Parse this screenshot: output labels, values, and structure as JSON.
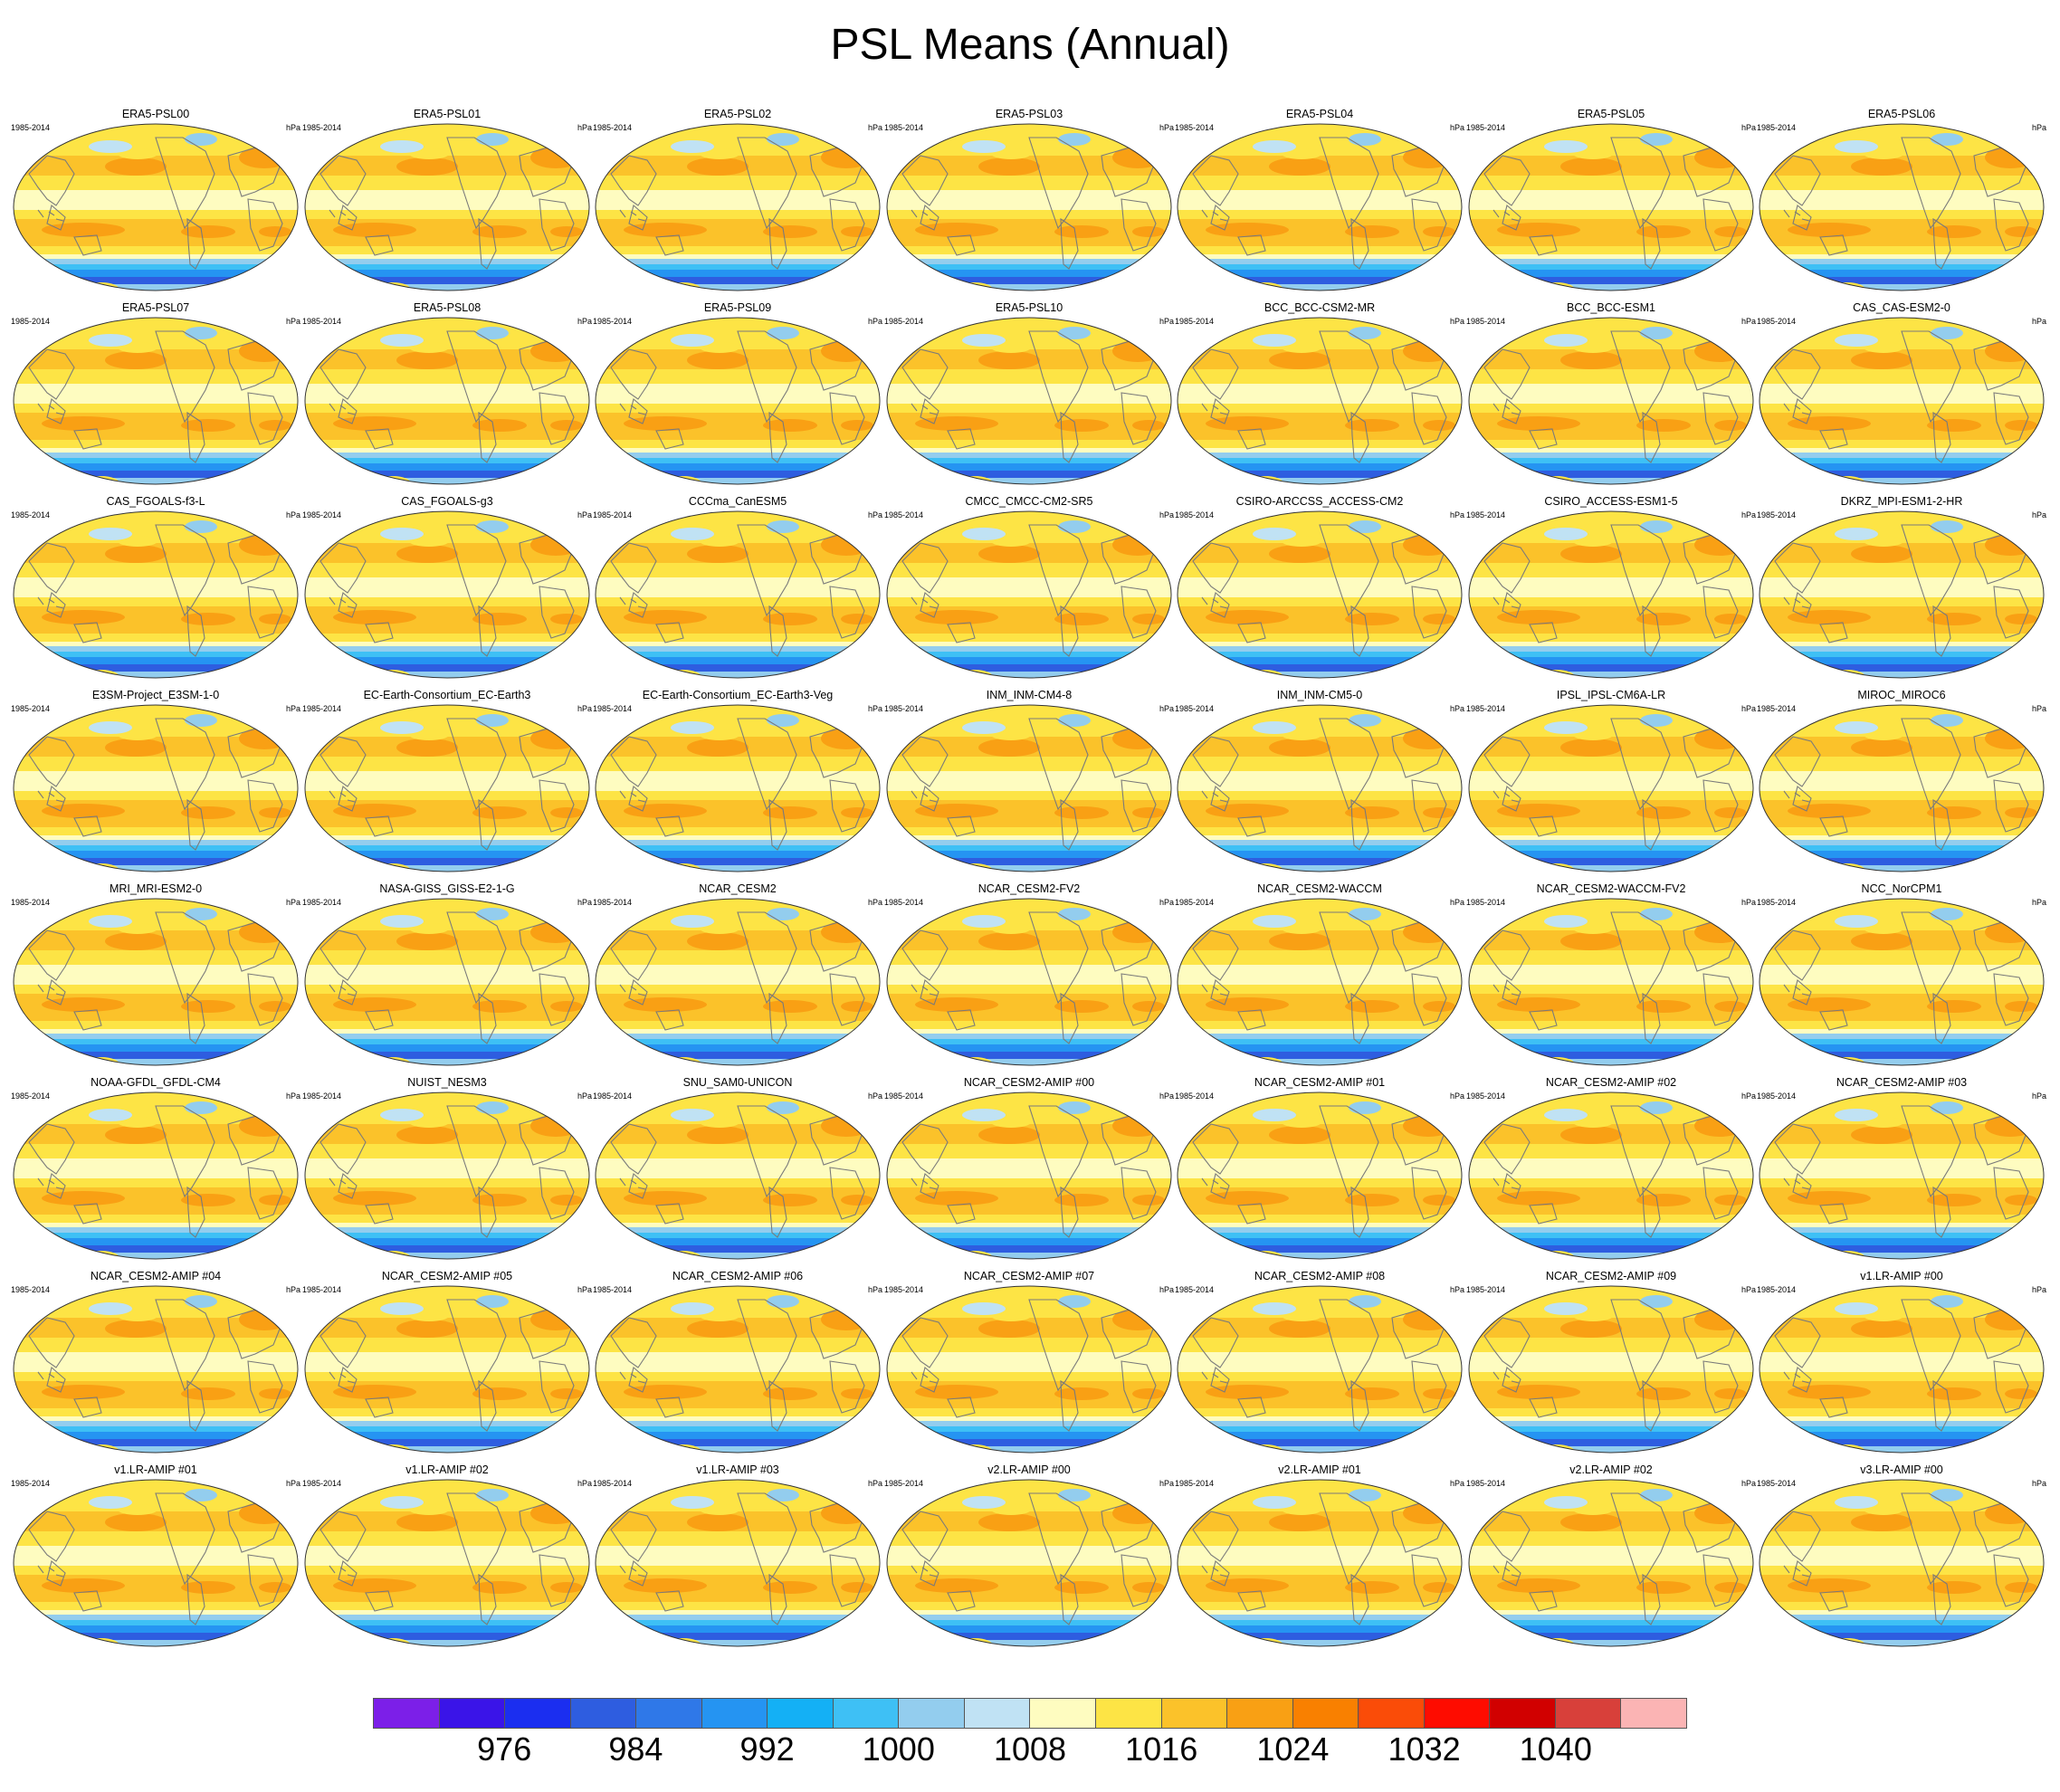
{
  "title": "PSL Means (Annual)",
  "period_label": "1985-2014",
  "units_label": "hPa",
  "panels": [
    "ERA5-PSL00",
    "ERA5-PSL01",
    "ERA5-PSL02",
    "ERA5-PSL03",
    "ERA5-PSL04",
    "ERA5-PSL05",
    "ERA5-PSL06",
    "ERA5-PSL07",
    "ERA5-PSL08",
    "ERA5-PSL09",
    "ERA5-PSL10",
    "BCC_BCC-CSM2-MR",
    "BCC_BCC-ESM1",
    "CAS_CAS-ESM2-0",
    "CAS_FGOALS-f3-L",
    "CAS_FGOALS-g3",
    "CCCma_CanESM5",
    "CMCC_CMCC-CM2-SR5",
    "CSIRO-ARCCSS_ACCESS-CM2",
    "CSIRO_ACCESS-ESM1-5",
    "DKRZ_MPI-ESM1-2-HR",
    "E3SM-Project_E3SM-1-0",
    "EC-Earth-Consortium_EC-Earth3",
    "EC-Earth-Consortium_EC-Earth3-Veg",
    "INM_INM-CM4-8",
    "INM_INM-CM5-0",
    "IPSL_IPSL-CM6A-LR",
    "MIROC_MIROC6",
    "MRI_MRI-ESM2-0",
    "NASA-GISS_GISS-E2-1-G",
    "NCAR_CESM2",
    "NCAR_CESM2-FV2",
    "NCAR_CESM2-WACCM",
    "NCAR_CESM2-WACCM-FV2",
    "NCC_NorCPM1",
    "NOAA-GFDL_GFDL-CM4",
    "NUIST_NESM3",
    "SNU_SAM0-UNICON",
    "NCAR_CESM2-AMIP  #00",
    "NCAR_CESM2-AMIP  #01",
    "NCAR_CESM2-AMIP  #02",
    "NCAR_CESM2-AMIP  #03",
    "NCAR_CESM2-AMIP  #04",
    "NCAR_CESM2-AMIP  #05",
    "NCAR_CESM2-AMIP  #06",
    "NCAR_CESM2-AMIP  #07",
    "NCAR_CESM2-AMIP  #08",
    "NCAR_CESM2-AMIP  #09",
    "v1.LR-AMIP  #00",
    "v1.LR-AMIP  #01",
    "v1.LR-AMIP  #02",
    "v1.LR-AMIP  #03",
    "v2.LR-AMIP  #00",
    "v2.LR-AMIP  #01",
    "v2.LR-AMIP  #02",
    "v3.LR-AMIP  #00"
  ],
  "colorbar": {
    "colors": [
      "#7c1fe8",
      "#3a14e8",
      "#1b2ef0",
      "#2e5de0",
      "#2f78e8",
      "#2594f2",
      "#14b0f5",
      "#3ec0f5",
      "#93cdee",
      "#c0e2f4",
      "#fefcc0",
      "#fde445",
      "#fbc22a",
      "#f9a014",
      "#f98000",
      "#fa4c08",
      "#fe0c00",
      "#d10000",
      "#d8403a",
      "#fbb4b4"
    ],
    "labels": [
      "976",
      "984",
      "992",
      "1000",
      "1008",
      "1016",
      "1024",
      "1032",
      "1040"
    ],
    "label_box_edges": [
      2,
      4,
      6,
      8,
      10,
      12,
      14,
      16,
      18
    ]
  }
}
